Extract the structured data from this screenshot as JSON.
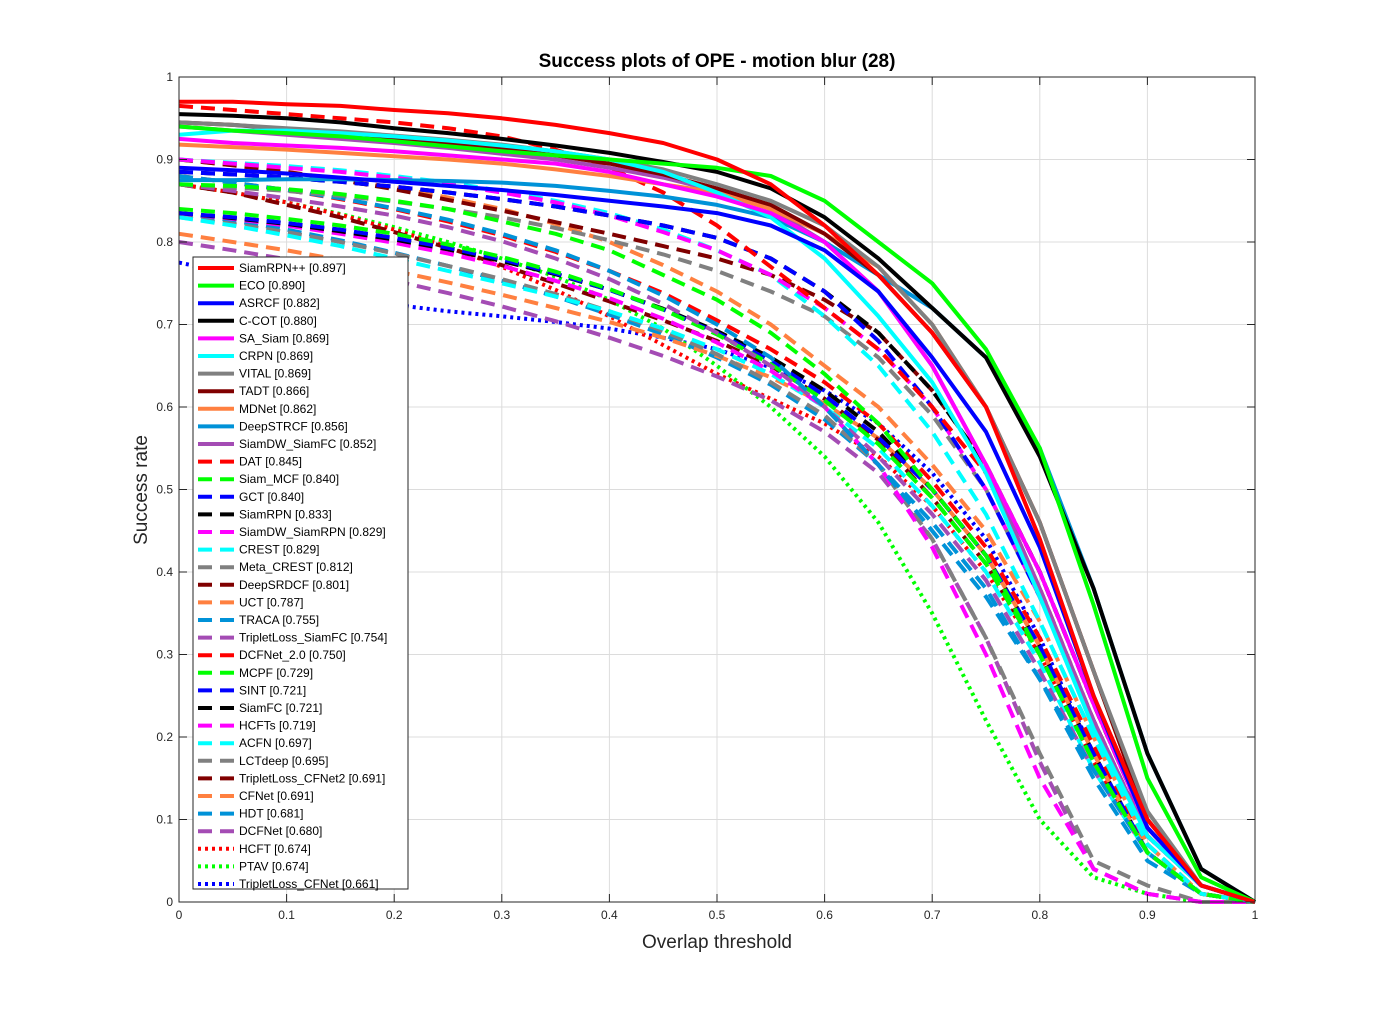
{
  "chart_data": {
    "type": "line",
    "title": "Success plots of OPE - motion blur (28)",
    "xlabel": "Overlap threshold",
    "ylabel": "Success rate",
    "xlim": [
      0,
      1
    ],
    "ylim": [
      0,
      1
    ],
    "grid": true,
    "legend_position": "left",
    "x_tick_labels": [
      "0",
      "0.1",
      "0.2",
      "0.3",
      "0.4",
      "0.5",
      "0.6",
      "0.7",
      "0.8",
      "0.9",
      "1"
    ],
    "y_tick_labels": [
      "0",
      "0.1",
      "0.2",
      "0.3",
      "0.4",
      "0.5",
      "0.6",
      "0.7",
      "0.8",
      "0.9",
      "1"
    ],
    "x": [
      0,
      0.05,
      0.1,
      0.15,
      0.2,
      0.25,
      0.3,
      0.35,
      0.4,
      0.45,
      0.5,
      0.55,
      0.6,
      0.65,
      0.7,
      0.75,
      0.8,
      0.85,
      0.9,
      0.95,
      1.0
    ],
    "series": [
      {
        "name": "SiamRPN++",
        "score": "0.897",
        "color": "#ff0000",
        "style": "solid",
        "values": [
          0.97,
          0.97,
          0.967,
          0.965,
          0.96,
          0.956,
          0.95,
          0.942,
          0.932,
          0.92,
          0.9,
          0.87,
          0.82,
          0.76,
          0.69,
          0.6,
          0.44,
          0.25,
          0.1,
          0.02,
          0.0
        ]
      },
      {
        "name": "ECO",
        "score": "0.890",
        "color": "#00ff00",
        "style": "solid",
        "values": [
          0.94,
          0.935,
          0.932,
          0.928,
          0.922,
          0.916,
          0.91,
          0.905,
          0.9,
          0.895,
          0.89,
          0.88,
          0.85,
          0.8,
          0.75,
          0.67,
          0.55,
          0.36,
          0.15,
          0.03,
          0.0
        ]
      },
      {
        "name": "ASRCF",
        "score": "0.882",
        "color": "#0000ff",
        "style": "solid",
        "values": [
          0.89,
          0.887,
          0.883,
          0.878,
          0.873,
          0.868,
          0.863,
          0.857,
          0.85,
          0.843,
          0.835,
          0.82,
          0.79,
          0.74,
          0.66,
          0.57,
          0.43,
          0.25,
          0.09,
          0.02,
          0.0
        ]
      },
      {
        "name": "C-COT",
        "score": "0.880",
        "color": "#000000",
        "style": "solid",
        "values": [
          0.955,
          0.953,
          0.95,
          0.945,
          0.938,
          0.932,
          0.925,
          0.917,
          0.908,
          0.897,
          0.885,
          0.865,
          0.83,
          0.78,
          0.72,
          0.66,
          0.54,
          0.38,
          0.18,
          0.04,
          0.0
        ]
      },
      {
        "name": "SA_Siam",
        "score": "0.869",
        "color": "#ff00ff",
        "style": "solid",
        "values": [
          0.925,
          0.92,
          0.917,
          0.914,
          0.91,
          0.905,
          0.9,
          0.895,
          0.885,
          0.87,
          0.855,
          0.835,
          0.8,
          0.74,
          0.65,
          0.53,
          0.4,
          0.24,
          0.09,
          0.02,
          0.0
        ]
      },
      {
        "name": "CRPN",
        "score": "0.869",
        "color": "#00ffff",
        "style": "solid",
        "values": [
          0.93,
          0.935,
          0.935,
          0.932,
          0.928,
          0.923,
          0.917,
          0.91,
          0.9,
          0.885,
          0.86,
          0.83,
          0.78,
          0.71,
          0.63,
          0.52,
          0.37,
          0.21,
          0.08,
          0.02,
          0.0
        ]
      },
      {
        "name": "VITAL",
        "score": "0.869",
        "color": "#808080",
        "style": "solid",
        "values": [
          0.945,
          0.942,
          0.938,
          0.934,
          0.929,
          0.924,
          0.918,
          0.91,
          0.9,
          0.888,
          0.87,
          0.85,
          0.82,
          0.77,
          0.7,
          0.6,
          0.46,
          0.28,
          0.11,
          0.02,
          0.0
        ]
      },
      {
        "name": "TADT",
        "score": "0.866",
        "color": "#800000",
        "style": "solid",
        "values": [
          0.945,
          0.942,
          0.937,
          0.932,
          0.926,
          0.92,
          0.913,
          0.905,
          0.895,
          0.882,
          0.865,
          0.845,
          0.81,
          0.76,
          0.69,
          0.6,
          0.46,
          0.28,
          0.1,
          0.02,
          0.0
        ]
      },
      {
        "name": "MDNet",
        "score": "0.862",
        "color": "#ff8040",
        "style": "solid",
        "values": [
          0.918,
          0.915,
          0.912,
          0.908,
          0.904,
          0.9,
          0.895,
          0.888,
          0.88,
          0.87,
          0.86,
          0.84,
          0.81,
          0.77,
          0.7,
          0.6,
          0.46,
          0.28,
          0.1,
          0.02,
          0.0
        ]
      },
      {
        "name": "DeepSTRCF",
        "score": "0.856",
        "color": "#0092d8",
        "style": "solid",
        "values": [
          0.875,
          0.875,
          0.876,
          0.876,
          0.875,
          0.874,
          0.872,
          0.868,
          0.862,
          0.855,
          0.845,
          0.83,
          0.8,
          0.76,
          0.72,
          0.66,
          0.55,
          0.38,
          0.18,
          0.04,
          0.0
        ]
      },
      {
        "name": "SiamDW_SiamFC",
        "score": "0.852",
        "color": "#a44cb4",
        "style": "solid",
        "values": [
          0.94,
          0.935,
          0.93,
          0.925,
          0.92,
          0.914,
          0.907,
          0.9,
          0.89,
          0.878,
          0.862,
          0.84,
          0.8,
          0.74,
          0.65,
          0.53,
          0.38,
          0.22,
          0.08,
          0.02,
          0.0
        ]
      },
      {
        "name": "DAT",
        "score": "0.845",
        "color": "#ff0000",
        "style": "dash",
        "values": [
          0.965,
          0.96,
          0.955,
          0.95,
          0.945,
          0.938,
          0.928,
          0.912,
          0.89,
          0.86,
          0.82,
          0.77,
          0.72,
          0.67,
          0.6,
          0.52,
          0.38,
          0.22,
          0.08,
          0.02,
          0.0
        ]
      },
      {
        "name": "Siam_MCF",
        "score": "0.840",
        "color": "#00ff00",
        "style": "dash",
        "values": [
          0.87,
          0.868,
          0.864,
          0.858,
          0.85,
          0.84,
          0.825,
          0.81,
          0.79,
          0.76,
          0.73,
          0.69,
          0.64,
          0.58,
          0.5,
          0.42,
          0.3,
          0.17,
          0.06,
          0.01,
          0.0
        ]
      },
      {
        "name": "GCT",
        "score": "0.840",
        "color": "#0000ff",
        "style": "dash",
        "values": [
          0.885,
          0.882,
          0.878,
          0.873,
          0.867,
          0.86,
          0.852,
          0.843,
          0.832,
          0.82,
          0.805,
          0.78,
          0.74,
          0.68,
          0.6,
          0.5,
          0.37,
          0.22,
          0.08,
          0.02,
          0.0
        ]
      },
      {
        "name": "SiamRPN",
        "score": "0.833",
        "color": "#000000",
        "style": "dash",
        "values": [
          0.885,
          0.882,
          0.878,
          0.873,
          0.867,
          0.86,
          0.852,
          0.843,
          0.832,
          0.82,
          0.805,
          0.78,
          0.74,
          0.69,
          0.62,
          0.53,
          0.4,
          0.24,
          0.09,
          0.02,
          0.0
        ]
      },
      {
        "name": "SiamDW_SiamRPN",
        "score": "0.829",
        "color": "#ff00ff",
        "style": "dash",
        "values": [
          0.9,
          0.895,
          0.89,
          0.885,
          0.878,
          0.87,
          0.86,
          0.848,
          0.832,
          0.812,
          0.79,
          0.76,
          0.72,
          0.67,
          0.6,
          0.5,
          0.37,
          0.22,
          0.08,
          0.02,
          0.0
        ]
      },
      {
        "name": "CREST",
        "score": "0.829",
        "color": "#00ffff",
        "style": "dash",
        "values": [
          0.9,
          0.896,
          0.892,
          0.887,
          0.88,
          0.872,
          0.862,
          0.85,
          0.835,
          0.815,
          0.79,
          0.76,
          0.71,
          0.65,
          0.57,
          0.47,
          0.34,
          0.2,
          0.07,
          0.01,
          0.0
        ]
      },
      {
        "name": "Meta_CREST",
        "score": "0.812",
        "color": "#808080",
        "style": "dash",
        "values": [
          0.87,
          0.866,
          0.862,
          0.856,
          0.849,
          0.84,
          0.83,
          0.817,
          0.802,
          0.785,
          0.765,
          0.74,
          0.71,
          0.66,
          0.59,
          0.5,
          0.37,
          0.22,
          0.08,
          0.02,
          0.0
        ]
      },
      {
        "name": "DeepSRDCF",
        "score": "0.801",
        "color": "#800000",
        "style": "dash",
        "values": [
          0.9,
          0.893,
          0.885,
          0.875,
          0.864,
          0.851,
          0.838,
          0.824,
          0.81,
          0.795,
          0.78,
          0.76,
          0.73,
          0.69,
          0.62,
          0.53,
          0.4,
          0.24,
          0.09,
          0.02,
          0.0
        ]
      },
      {
        "name": "UCT",
        "score": "0.787",
        "color": "#ff8040",
        "style": "dash",
        "values": [
          0.9,
          0.893,
          0.885,
          0.876,
          0.866,
          0.854,
          0.84,
          0.822,
          0.8,
          0.772,
          0.74,
          0.7,
          0.65,
          0.6,
          0.53,
          0.45,
          0.34,
          0.2,
          0.07,
          0.01,
          0.0
        ]
      },
      {
        "name": "TRACA",
        "score": "0.755",
        "color": "#0092d8",
        "style": "dash",
        "values": [
          0.88,
          0.872,
          0.863,
          0.853,
          0.841,
          0.827,
          0.81,
          0.79,
          0.765,
          0.735,
          0.7,
          0.66,
          0.6,
          0.53,
          0.45,
          0.37,
          0.27,
          0.16,
          0.06,
          0.01,
          0.0
        ]
      },
      {
        "name": "TripletLoss_SiamFC",
        "score": "0.754",
        "color": "#a44cb4",
        "style": "dash",
        "values": [
          0.87,
          0.862,
          0.853,
          0.843,
          0.832,
          0.818,
          0.801,
          0.78,
          0.755,
          0.725,
          0.69,
          0.65,
          0.6,
          0.54,
          0.47,
          0.39,
          0.28,
          0.16,
          0.06,
          0.01,
          0.0
        ]
      },
      {
        "name": "DCFNet_2.0",
        "score": "0.750",
        "color": "#ff0000",
        "style": "dash",
        "values": [
          0.88,
          0.872,
          0.863,
          0.852,
          0.84,
          0.825,
          0.808,
          0.788,
          0.765,
          0.738,
          0.705,
          0.67,
          0.63,
          0.58,
          0.51,
          0.43,
          0.32,
          0.19,
          0.07,
          0.01,
          0.0
        ]
      },
      {
        "name": "MCPF",
        "score": "0.729",
        "color": "#00ff00",
        "style": "dash",
        "values": [
          0.84,
          0.835,
          0.828,
          0.82,
          0.81,
          0.797,
          0.782,
          0.764,
          0.743,
          0.718,
          0.688,
          0.652,
          0.608,
          0.555,
          0.49,
          0.41,
          0.3,
          0.17,
          0.06,
          0.01,
          0.0
        ]
      },
      {
        "name": "SINT",
        "score": "0.721",
        "color": "#0000ff",
        "style": "dash",
        "values": [
          0.835,
          0.83,
          0.823,
          0.815,
          0.805,
          0.793,
          0.779,
          0.762,
          0.742,
          0.718,
          0.69,
          0.656,
          0.614,
          0.563,
          0.5,
          0.42,
          0.31,
          0.18,
          0.06,
          0.01,
          0.0
        ]
      },
      {
        "name": "SiamFC",
        "score": "0.721",
        "color": "#000000",
        "style": "dash",
        "values": [
          0.835,
          0.829,
          0.822,
          0.813,
          0.803,
          0.791,
          0.777,
          0.761,
          0.742,
          0.719,
          0.692,
          0.66,
          0.62,
          0.57,
          0.5,
          0.42,
          0.31,
          0.18,
          0.06,
          0.01,
          0.0
        ]
      },
      {
        "name": "HCFTs",
        "score": "0.719",
        "color": "#ff00ff",
        "style": "dash",
        "values": [
          0.835,
          0.828,
          0.82,
          0.81,
          0.799,
          0.786,
          0.771,
          0.753,
          0.732,
          0.707,
          0.678,
          0.644,
          0.6,
          0.53,
          0.43,
          0.3,
          0.15,
          0.04,
          0.01,
          0.0,
          0.0
        ]
      },
      {
        "name": "ACFN",
        "score": "0.697",
        "color": "#00ffff",
        "style": "dash",
        "values": [
          0.83,
          0.82,
          0.808,
          0.795,
          0.78,
          0.765,
          0.75,
          0.734,
          0.716,
          0.695,
          0.67,
          0.64,
          0.6,
          0.55,
          0.48,
          0.4,
          0.29,
          0.16,
          0.06,
          0.01,
          0.0
        ]
      },
      {
        "name": "LCTdeep",
        "score": "0.695",
        "color": "#808080",
        "style": "dash",
        "values": [
          0.83,
          0.822,
          0.812,
          0.8,
          0.786,
          0.771,
          0.755,
          0.737,
          0.716,
          0.692,
          0.664,
          0.63,
          0.59,
          0.53,
          0.44,
          0.32,
          0.18,
          0.05,
          0.02,
          0.0,
          0.0
        ]
      },
      {
        "name": "TripletLoss_CFNet2",
        "score": "0.691",
        "color": "#800000",
        "style": "dash",
        "values": [
          0.87,
          0.86,
          0.845,
          0.83,
          0.812,
          0.793,
          0.772,
          0.75,
          0.728,
          0.705,
          0.68,
          0.65,
          0.61,
          0.56,
          0.49,
          0.41,
          0.3,
          0.17,
          0.06,
          0.01,
          0.0
        ]
      },
      {
        "name": "CFNet",
        "score": "0.691",
        "color": "#ff8040",
        "style": "dash",
        "values": [
          0.81,
          0.8,
          0.79,
          0.778,
          0.765,
          0.751,
          0.736,
          0.72,
          0.703,
          0.684,
          0.662,
          0.636,
          0.604,
          0.562,
          0.5,
          0.42,
          0.31,
          0.18,
          0.06,
          0.01,
          0.0
        ]
      },
      {
        "name": "HDT",
        "score": "0.681",
        "color": "#0092d8",
        "style": "dash",
        "values": [
          0.835,
          0.826,
          0.815,
          0.802,
          0.787,
          0.771,
          0.753,
          0.734,
          0.712,
          0.688,
          0.66,
          0.627,
          0.585,
          0.53,
          0.46,
          0.38,
          0.27,
          0.15,
          0.05,
          0.01,
          0.0
        ]
      },
      {
        "name": "DCFNet",
        "score": "0.680",
        "color": "#a44cb4",
        "style": "dash",
        "values": [
          0.8,
          0.79,
          0.779,
          0.767,
          0.753,
          0.738,
          0.722,
          0.704,
          0.684,
          0.662,
          0.637,
          0.608,
          0.57,
          0.52,
          0.44,
          0.32,
          0.17,
          0.04,
          0.01,
          0.0,
          0.0
        ]
      },
      {
        "name": "HCFT",
        "score": "0.674",
        "color": "#ff0000",
        "style": "dot",
        "values": [
          0.87,
          0.86,
          0.848,
          0.833,
          0.815,
          0.794,
          0.77,
          0.742,
          0.71,
          0.675,
          0.64,
          0.61,
          0.58,
          0.54,
          0.48,
          0.4,
          0.3,
          0.17,
          0.06,
          0.01,
          0.0
        ]
      },
      {
        "name": "PTAV",
        "score": "0.674",
        "color": "#00ff00",
        "style": "dot",
        "values": [
          0.87,
          0.86,
          0.848,
          0.834,
          0.818,
          0.8,
          0.78,
          0.758,
          0.73,
          0.695,
          0.65,
          0.6,
          0.54,
          0.46,
          0.35,
          0.22,
          0.1,
          0.03,
          0.01,
          0.0,
          0.0
        ]
      },
      {
        "name": "TripletLoss_CFNet",
        "score": "0.661",
        "color": "#0000ff",
        "style": "dot",
        "values": [
          0.775,
          0.762,
          0.748,
          0.735,
          0.724,
          0.716,
          0.71,
          0.703,
          0.695,
          0.684,
          0.67,
          0.648,
          0.62,
          0.58,
          0.52,
          0.44,
          0.32,
          0.18,
          0.06,
          0.01,
          0.0
        ]
      }
    ]
  }
}
